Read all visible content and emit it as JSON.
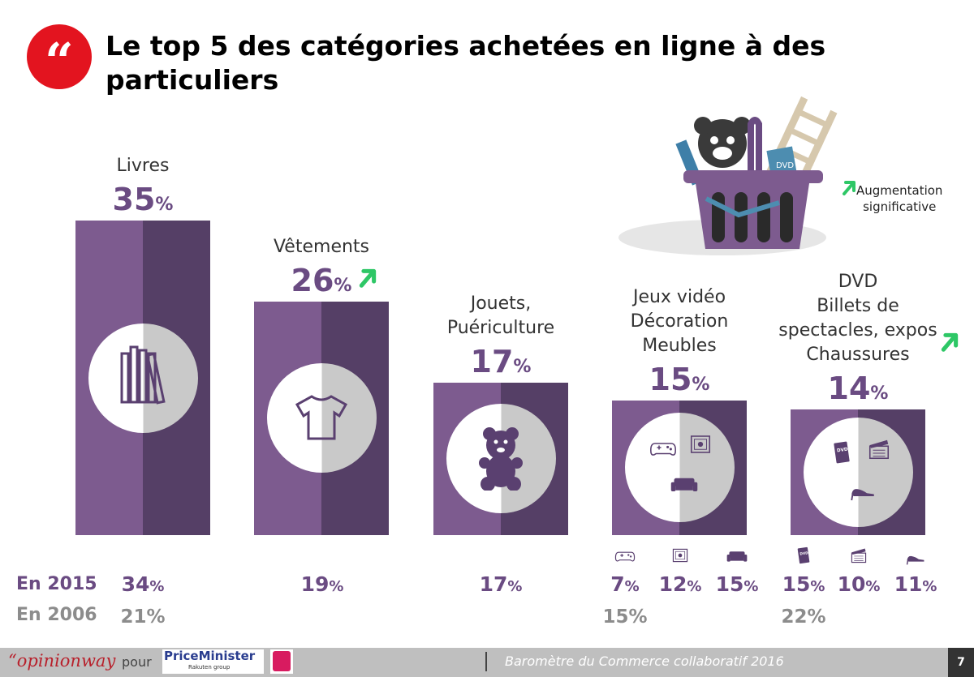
{
  "header": {
    "title": "Le top 5 des catégories achetées en ligne à des particuliers",
    "quote_glyph": "“"
  },
  "legend": {
    "label_line1": "Augmentation",
    "label_line2": "significative"
  },
  "chart_data": {
    "type": "bar",
    "title": "Le top 5 des catégories achetées en ligne à des particuliers",
    "categories": [
      {
        "lines": [
          "Livres"
        ],
        "value": 35,
        "pct": "35",
        "increase": false,
        "icons": [
          "books-icon"
        ]
      },
      {
        "lines": [
          "Vêtements"
        ],
        "value": 26,
        "pct": "26",
        "increase": true,
        "icons": [
          "tshirt-icon"
        ]
      },
      {
        "lines": [
          "Jouets,",
          "Puériculture"
        ],
        "value": 17,
        "pct": "17",
        "increase": false,
        "icons": [
          "teddy-bear-icon"
        ]
      },
      {
        "lines": [
          "Jeux vidéo",
          "Décoration",
          "Meubles"
        ],
        "value": 15,
        "pct": "15",
        "increase": false,
        "icons": [
          "gamepad-icon",
          "picture-frame-icon",
          "sofa-icon"
        ]
      },
      {
        "lines": [
          "DVD",
          "Billets de",
          "spectacles, expos",
          "Chaussures"
        ],
        "value": 14,
        "pct": "14",
        "increase": true,
        "icons": [
          "dvd-icon",
          "clapperboard-icon",
          "high-heel-icon"
        ]
      }
    ],
    "unit": "%",
    "ylim": [
      0,
      35
    ],
    "colors": {
      "light": "#7d5b8f",
      "dark": "#553f66",
      "pct_text": "#6a4b82",
      "arrow": "#2ec766"
    }
  },
  "history": {
    "label_2015": "En 2015",
    "label_2006": "En 2006",
    "values_2015": [
      "34",
      "19",
      "17",
      "7",
      "12",
      "15",
      "15",
      "10",
      "11"
    ],
    "icons_2015": [
      "",
      "",
      "",
      "gamepad-icon",
      "picture-frame-icon",
      "sofa-icon",
      "dvd-icon",
      "clapperboard-icon",
      "high-heel-icon"
    ],
    "values_2006": [
      "21",
      "",
      "",
      "15",
      "",
      "",
      "22",
      "",
      ""
    ],
    "unit": "%"
  },
  "footer": {
    "brand": "“opinionway",
    "pour": "pour",
    "partner": "PriceMinister",
    "partner_sub": "Rakuten group",
    "relay": "RELAY",
    "barometer": "Baromètre du Commerce collaboratif 2016",
    "page_number": "7"
  }
}
